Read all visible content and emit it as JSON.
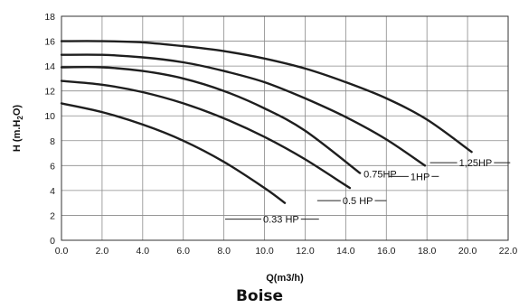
{
  "caption": "Boise",
  "chart_data": {
    "type": "line",
    "xlabel": "Q(m3/h)",
    "ylabel_parts": [
      "H (m.H",
      "2",
      "O)"
    ],
    "xlim": [
      0,
      22
    ],
    "ylim": [
      0,
      18
    ],
    "x_ticks": [
      0,
      2,
      4,
      6,
      8,
      10,
      12,
      14,
      16,
      18,
      20,
      22
    ],
    "x_tick_labels": [
      "0.0",
      "2.0",
      "4.0",
      "6.0",
      "8.0",
      "10.0",
      "12.0",
      "14.0",
      "16.0",
      "18.0",
      "20.0",
      "22.0"
    ],
    "y_ticks": [
      0,
      2,
      4,
      6,
      8,
      10,
      12,
      14,
      16,
      18
    ],
    "y_tick_labels": [
      "0",
      "2",
      "4",
      "6",
      "8",
      "10",
      "12",
      "14",
      "16",
      "18"
    ],
    "grid": true,
    "series": [
      {
        "name": "0.33 HP",
        "x": [
          0,
          2,
          4,
          6,
          8,
          10,
          11
        ],
        "y": [
          11,
          10.3,
          9.3,
          8.0,
          6.3,
          4.2,
          3.0
        ]
      },
      {
        "name": "0.5 HP",
        "x": [
          0,
          2,
          4,
          6,
          8,
          10,
          12,
          14.2
        ],
        "y": [
          12.8,
          12.5,
          11.9,
          11.0,
          9.8,
          8.3,
          6.5,
          4.2
        ]
      },
      {
        "name": "0.75HP",
        "x": [
          0,
          2,
          4,
          6,
          8,
          10,
          12,
          14.7
        ],
        "y": [
          13.9,
          13.9,
          13.6,
          13.0,
          12.0,
          10.6,
          8.8,
          5.4
        ]
      },
      {
        "name": "1HP",
        "x": [
          0,
          2,
          4,
          6,
          8,
          10,
          12,
          14,
          16,
          17.9
        ],
        "y": [
          14.9,
          14.9,
          14.7,
          14.3,
          13.6,
          12.7,
          11.4,
          9.9,
          8.1,
          6.0
        ]
      },
      {
        "name": "1,25HP",
        "x": [
          0,
          2,
          4,
          6,
          8,
          10,
          12,
          14,
          16,
          18,
          20.2
        ],
        "y": [
          16.0,
          16.0,
          15.9,
          15.6,
          15.2,
          14.6,
          13.8,
          12.7,
          11.4,
          9.7,
          7.1
        ]
      }
    ]
  }
}
